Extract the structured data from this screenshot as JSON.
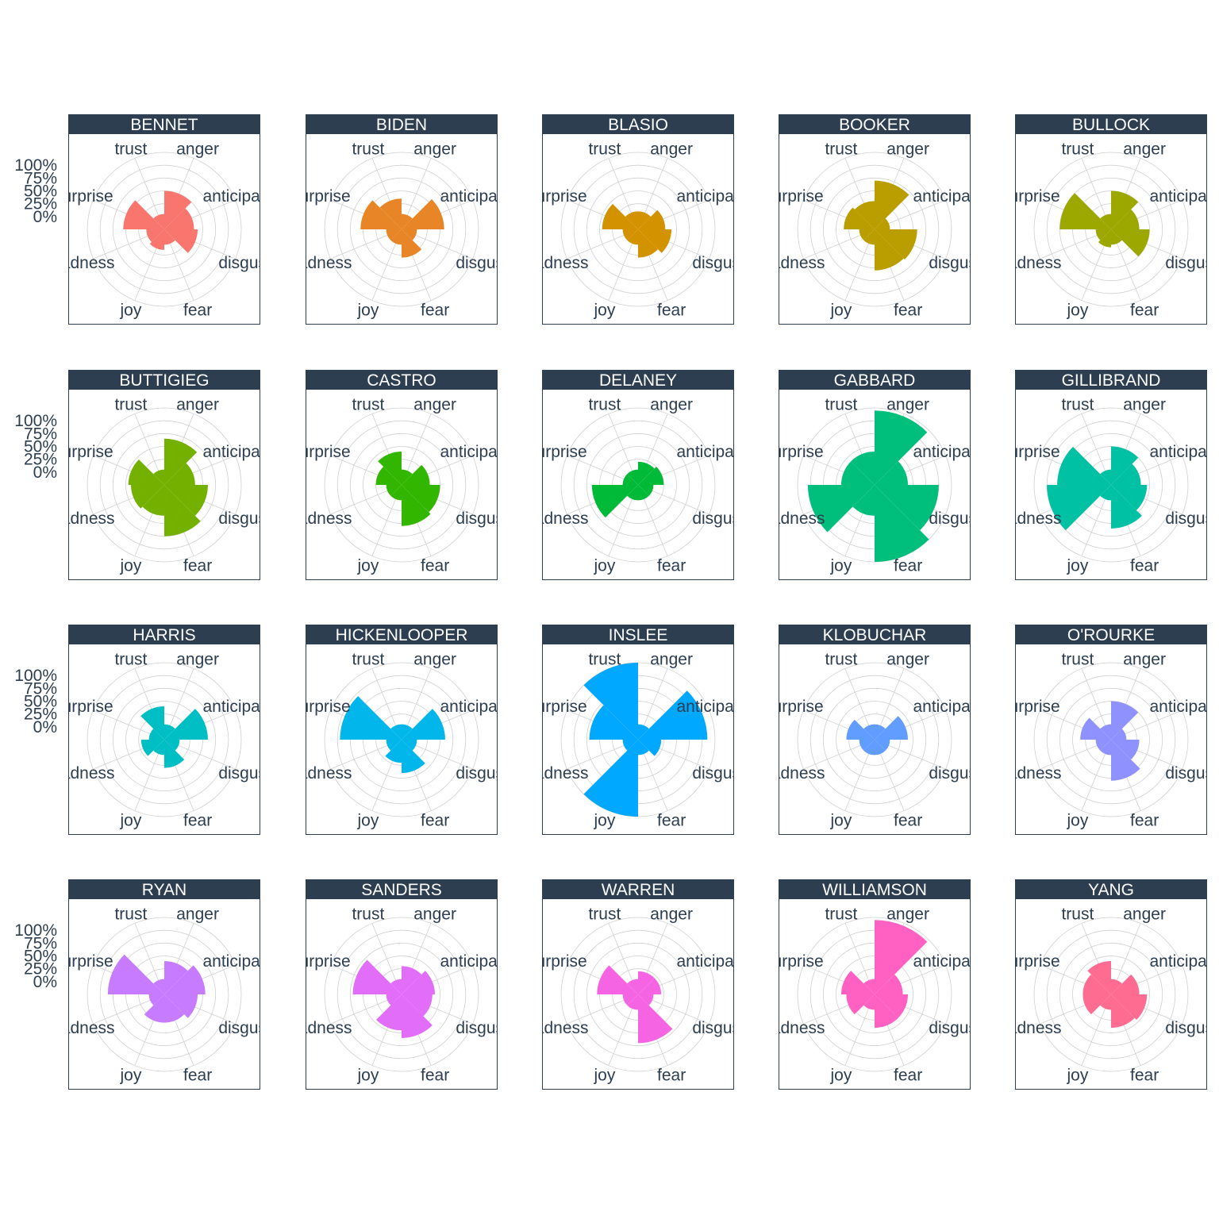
{
  "chart_data": {
    "type": "polar-bar",
    "title": "",
    "categories": [
      "anger",
      "anticipation",
      "disgust",
      "fear",
      "joy",
      "sadness",
      "surprise",
      "trust"
    ],
    "ytick_labels": [
      "0%",
      "25%",
      "50%",
      "75%",
      "100%"
    ],
    "ylim": [
      -0.25,
      1.25
    ],
    "facets": [
      {
        "name": "BENNET",
        "color": "#F8766D",
        "values": [
          0.5,
          0.33,
          0.4,
          0.05,
          0.15,
          0.1,
          0.55,
          0.05
        ]
      },
      {
        "name": "BIDEN",
        "color": "#E88526",
        "values": [
          0.05,
          0.58,
          0.05,
          0.3,
          0.05,
          0.05,
          0.55,
          0.35
        ]
      },
      {
        "name": "BLASIO",
        "color": "#D39200",
        "values": [
          0.1,
          0.28,
          0.4,
          0.3,
          0.05,
          0.05,
          0.45,
          0.1
        ]
      },
      {
        "name": "BOOKER",
        "color": "#BA9E00",
        "values": [
          0.7,
          0.05,
          0.58,
          0.55,
          0.05,
          0.05,
          0.35,
          0.3
        ]
      },
      {
        "name": "BULLOCK",
        "color": "#9CA700",
        "values": [
          0.5,
          0.3,
          0.5,
          0.05,
          0.1,
          0.05,
          0.75,
          0.05
        ]
      },
      {
        "name": "BUTTIGIEG",
        "color": "#73B000",
        "values": [
          0.65,
          0.35,
          0.6,
          0.75,
          0.35,
          0.4,
          0.45,
          0.05
        ]
      },
      {
        "name": "CASTRO",
        "color": "#32B600",
        "values": [
          0.05,
          0.3,
          0.5,
          0.55,
          0.05,
          0.05,
          0.25,
          0.4
        ]
      },
      {
        "name": "DELANEY",
        "color": "#00BA38",
        "values": [
          0.2,
          0.25,
          0.05,
          0.05,
          0.05,
          0.65,
          0.05,
          0.05
        ]
      },
      {
        "name": "GABBARD",
        "color": "#00BF7D",
        "values": [
          1.2,
          0.4,
          1.0,
          1.25,
          0.35,
          1.05,
          0.4,
          0.4
        ]
      },
      {
        "name": "GILLIBRAND",
        "color": "#00C1A3",
        "values": [
          0.5,
          0.33,
          0.45,
          0.6,
          0.05,
          1.0,
          0.8,
          0.05
        ]
      },
      {
        "name": "HARRIS",
        "color": "#00BFC4",
        "values": [
          0.05,
          0.6,
          0.05,
          0.3,
          0.05,
          0.2,
          0.05,
          0.4
        ]
      },
      {
        "name": "HICKENLOOPER",
        "color": "#00B6EB",
        "values": [
          0.05,
          0.6,
          0.05,
          0.4,
          0.2,
          0.05,
          0.95,
          0.05
        ]
      },
      {
        "name": "INSLEE",
        "color": "#00A9FF",
        "values": [
          0.05,
          1.1,
          0.2,
          0.05,
          1.25,
          0.05,
          0.7,
          1.25
        ]
      },
      {
        "name": "KLOBUCHAR",
        "color": "#619CFF",
        "values": [
          0.05,
          0.4,
          0.05,
          0.05,
          0.05,
          0.05,
          0.3,
          0.05
        ]
      },
      {
        "name": "O'ROURKE",
        "color": "#8F91FF",
        "values": [
          0.5,
          0.05,
          0.3,
          0.55,
          0.05,
          0.05,
          0.35,
          0.05
        ]
      },
      {
        "name": "RYAN",
        "color": "#C77CFF",
        "values": [
          0.4,
          0.55,
          0.4,
          0.3,
          0.3,
          0.05,
          0.85,
          0.05
        ]
      },
      {
        "name": "SANDERS",
        "color": "#E16DF9",
        "values": [
          0.3,
          0.4,
          0.35,
          0.6,
          0.45,
          0.05,
          0.7,
          0.05
        ]
      },
      {
        "name": "WARREN",
        "color": "#F564E3",
        "values": [
          0.2,
          0.2,
          0.05,
          0.7,
          0.05,
          0.05,
          0.55,
          0.05
        ]
      },
      {
        "name": "WILLIAMSON",
        "color": "#FF61C3",
        "values": [
          1.2,
          0.3,
          0.4,
          0.4,
          0.05,
          0.3,
          0.4,
          0.05
        ]
      },
      {
        "name": "YANG",
        "color": "#FF6C91",
        "values": [
          0.05,
          0.3,
          0.45,
          0.4,
          0.05,
          0.3,
          0.3,
          0.4
        ]
      }
    ]
  }
}
